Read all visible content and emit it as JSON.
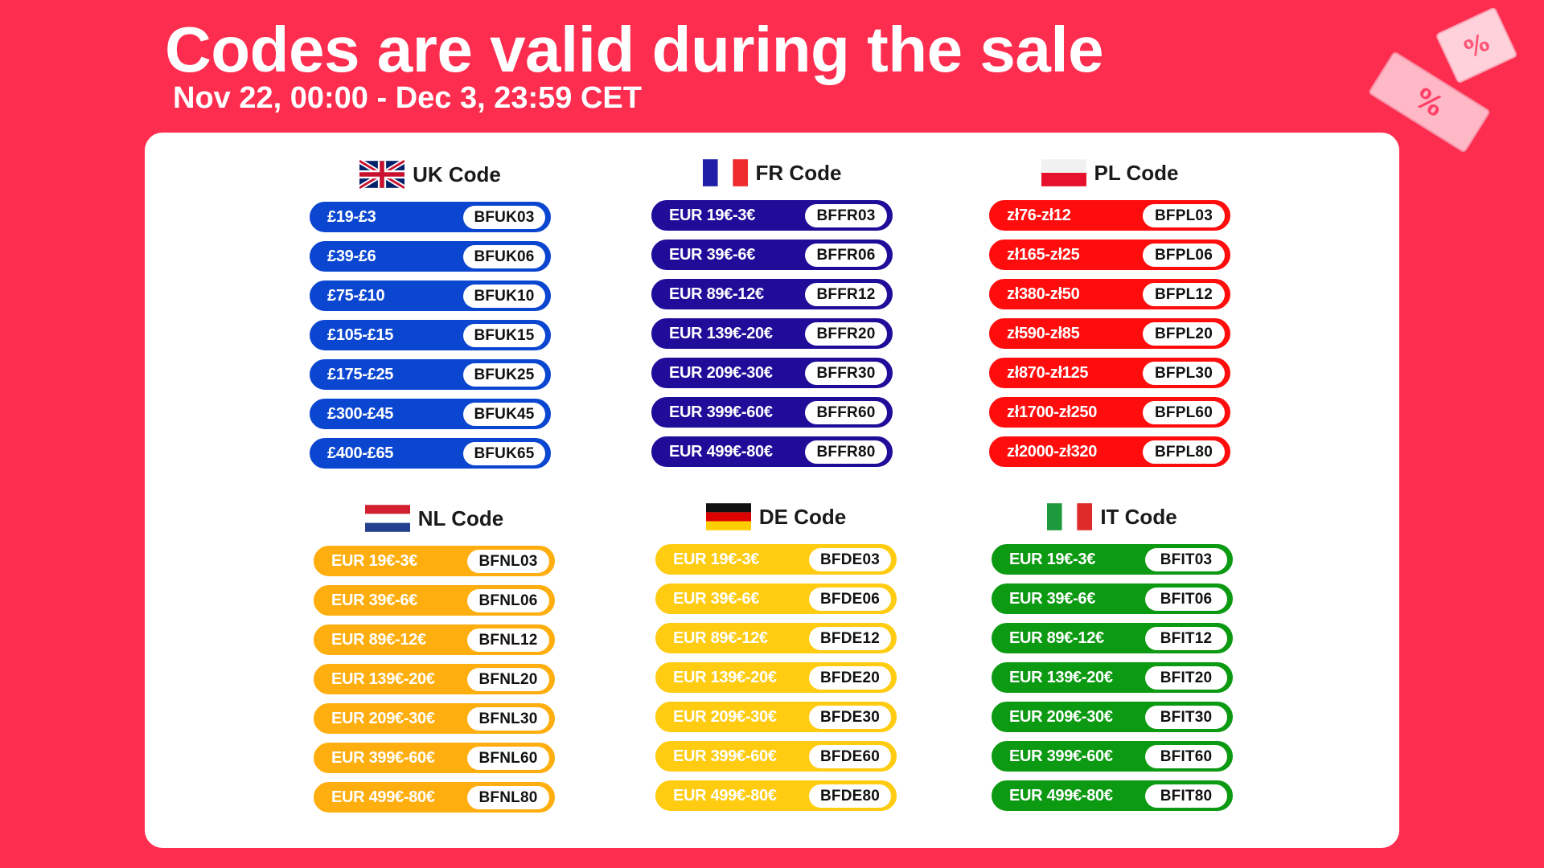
{
  "header": {
    "title": "Codes are valid during the sale",
    "subtitle": "Nov 22, 00:00 - Dec 3, 23:59 CET"
  },
  "decor": {
    "icon": "discount-tickets-icon",
    "glyph": "%"
  },
  "sections": [
    {
      "title": "UK Code",
      "flag": "uk-flag-icon",
      "color": "#0b46d1",
      "text_color": "#ffffff",
      "rows": [
        {
          "amount": "£19-£3",
          "code": "BFUK03"
        },
        {
          "amount": "£39-£6",
          "code": "BFUK06"
        },
        {
          "amount": "£75-£10",
          "code": "BFUK10"
        },
        {
          "amount": "£105-£15",
          "code": "BFUK15"
        },
        {
          "amount": "£175-£25",
          "code": "BFUK25"
        },
        {
          "amount": "£300-£45",
          "code": "BFUK45"
        },
        {
          "amount": "£400-£65",
          "code": "BFUK65"
        }
      ]
    },
    {
      "title": "FR Code",
      "flag": "france-flag-icon",
      "color": "#1f0d9a",
      "text_color": "#ffffff",
      "rows": [
        {
          "amount": "EUR 19€-3€",
          "code": "BFFR03"
        },
        {
          "amount": "EUR 39€-6€",
          "code": "BFFR06"
        },
        {
          "amount": "EUR 89€-12€",
          "code": "BFFR12"
        },
        {
          "amount": "EUR 139€-20€",
          "code": "BFFR20"
        },
        {
          "amount": "EUR 209€-30€",
          "code": "BFFR30"
        },
        {
          "amount": "EUR 399€-60€",
          "code": "BFFR60"
        },
        {
          "amount": "EUR 499€-80€",
          "code": "BFFR80"
        }
      ]
    },
    {
      "title": "PL Code",
      "flag": "poland-flag-icon",
      "color": "#ff0d0d",
      "text_color": "#ffffff",
      "rows": [
        {
          "amount": "zł76-zł12",
          "code": "BFPL03"
        },
        {
          "amount": "zł165-zł25",
          "code": "BFPL06"
        },
        {
          "amount": "zł380-zł50",
          "code": "BFPL12"
        },
        {
          "amount": "zł590-zł85",
          "code": "BFPL20"
        },
        {
          "amount": "zł870-zł125",
          "code": "BFPL30"
        },
        {
          "amount": "zł1700-zł250",
          "code": "BFPL60"
        },
        {
          "amount": "zł2000-zł320",
          "code": "BFPL80"
        }
      ]
    },
    {
      "title": "NL Code",
      "flag": "netherlands-flag-icon",
      "color": "#ffae0f",
      "text_color": "#ffffff",
      "rows": [
        {
          "amount": "EUR 19€-3€",
          "code": "BFNL03"
        },
        {
          "amount": "EUR 39€-6€",
          "code": "BFNL06"
        },
        {
          "amount": "EUR 89€-12€",
          "code": "BFNL12"
        },
        {
          "amount": "EUR 139€-20€",
          "code": "BFNL20"
        },
        {
          "amount": "EUR 209€-30€",
          "code": "BFNL30"
        },
        {
          "amount": "EUR 399€-60€",
          "code": "BFNL60"
        },
        {
          "amount": "EUR 499€-80€",
          "code": "BFNL80"
        }
      ]
    },
    {
      "title": "DE Code",
      "flag": "germany-flag-icon",
      "color": "#ffcc12",
      "text_color": "#ffffff",
      "rows": [
        {
          "amount": "EUR 19€-3€",
          "code": "BFDE03"
        },
        {
          "amount": "EUR 39€-6€",
          "code": "BFDE06"
        },
        {
          "amount": "EUR 89€-12€",
          "code": "BFDE12"
        },
        {
          "amount": "EUR 139€-20€",
          "code": "BFDE20"
        },
        {
          "amount": "EUR 209€-30€",
          "code": "BFDE30"
        },
        {
          "amount": "EUR 399€-60€",
          "code": "BFDE60"
        },
        {
          "amount": "EUR 499€-80€",
          "code": "BFDE80"
        }
      ]
    },
    {
      "title": "IT Code",
      "flag": "italy-flag-icon",
      "color": "#0c9a12",
      "text_color": "#ffffff",
      "rows": [
        {
          "amount": "EUR 19€-3€",
          "code": "BFIT03"
        },
        {
          "amount": "EUR 39€-6€",
          "code": "BFIT06"
        },
        {
          "amount": "EUR 89€-12€",
          "code": "BFIT12"
        },
        {
          "amount": "EUR 139€-20€",
          "code": "BFIT20"
        },
        {
          "amount": "EUR 209€-30€",
          "code": "BFIT30"
        },
        {
          "amount": "EUR 399€-60€",
          "code": "BFIT60"
        },
        {
          "amount": "EUR 499€-80€",
          "code": "BFIT80"
        }
      ]
    }
  ]
}
